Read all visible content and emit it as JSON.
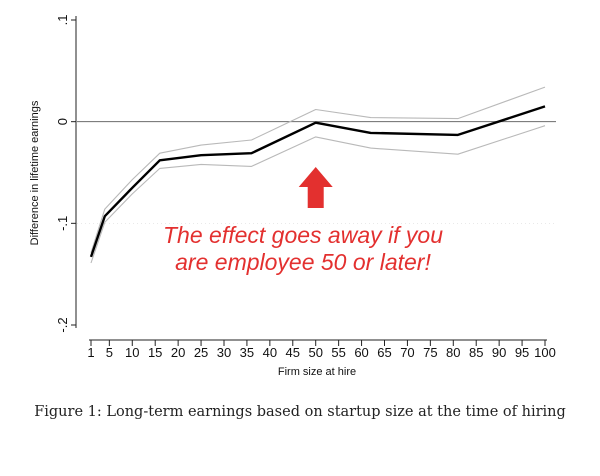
{
  "chart_data": {
    "type": "line",
    "xlabel": "Firm size at hire",
    "ylabel": "Difference in lifetime earnings",
    "x_ticks": [
      1,
      5,
      10,
      15,
      20,
      25,
      30,
      35,
      40,
      45,
      50,
      55,
      60,
      65,
      70,
      75,
      80,
      85,
      90,
      95,
      100
    ],
    "y_ticks": [
      {
        "value": 0.1,
        "label": ".1"
      },
      {
        "value": 0,
        "label": "0"
      },
      {
        "value": -0.1,
        "label": "-.1"
      },
      {
        "value": -0.2,
        "label": "-.2"
      }
    ],
    "xlim": [
      1,
      100
    ],
    "ylim": [
      -0.2,
      0.1
    ],
    "reference_line_y": 0,
    "grid": false,
    "series": [
      {
        "role": "estimate",
        "color": "#000000",
        "points": [
          [
            1,
            -0.133
          ],
          [
            4,
            -0.093
          ],
          [
            10,
            -0.065
          ],
          [
            16,
            -0.038
          ],
          [
            25,
            -0.033
          ],
          [
            36,
            -0.031
          ],
          [
            50,
            -0.001
          ],
          [
            62,
            -0.011
          ],
          [
            81,
            -0.013
          ],
          [
            100,
            0.015
          ]
        ]
      },
      {
        "role": "upper-ci",
        "color": "#b9b9b9",
        "points": [
          [
            1,
            -0.129
          ],
          [
            4,
            -0.086
          ],
          [
            10,
            -0.057
          ],
          [
            16,
            -0.031
          ],
          [
            25,
            -0.023
          ],
          [
            36,
            -0.018
          ],
          [
            50,
            0.012
          ],
          [
            62,
            0.004
          ],
          [
            81,
            0.003
          ],
          [
            100,
            0.034
          ]
        ]
      },
      {
        "role": "lower-ci",
        "color": "#b9b9b9",
        "points": [
          [
            1,
            -0.139
          ],
          [
            4,
            -0.099
          ],
          [
            10,
            -0.071
          ],
          [
            16,
            -0.046
          ],
          [
            25,
            -0.042
          ],
          [
            36,
            -0.044
          ],
          [
            50,
            -0.015
          ],
          [
            62,
            -0.026
          ],
          [
            81,
            -0.032
          ],
          [
            100,
            -0.004
          ]
        ]
      }
    ],
    "annotation": {
      "lines": [
        "The effect goes away if you",
        "are employee 50 or later!"
      ],
      "color": "#e3302f",
      "arrow_x": 50,
      "arrow_direction": "up"
    }
  },
  "caption": "Figure 1: Long-term earnings based on startup size at the time of hiring"
}
